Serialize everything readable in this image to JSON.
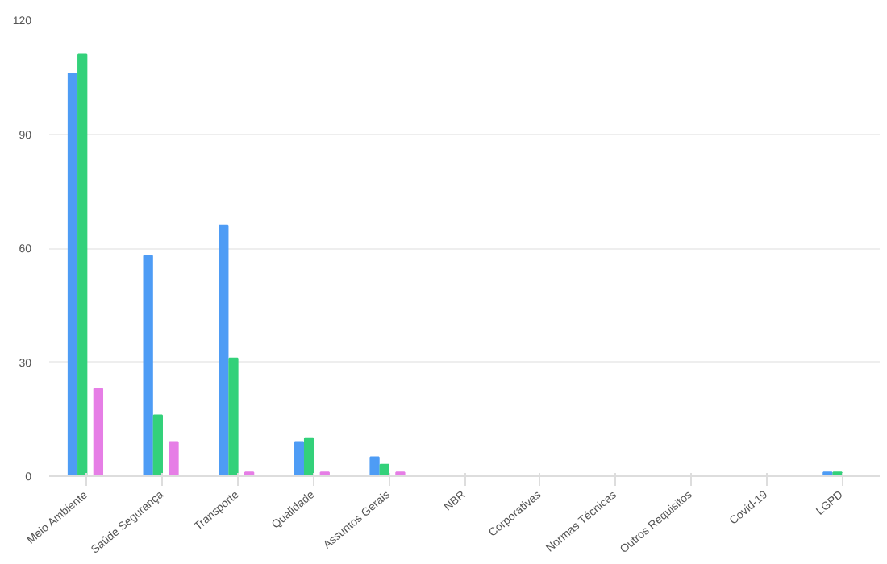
{
  "chart_data": {
    "type": "bar",
    "categories": [
      "Meio Ambiente",
      "Saúde Segurança",
      "Transporte",
      "Qualidade",
      "Assuntos Gerais",
      "NBR",
      "Corporativas",
      "Normas Técnicas",
      "Outros Requisitos",
      "Covid-19",
      "LGPD"
    ],
    "series": [
      {
        "color": "#4e9cf5",
        "values": [
          106,
          58,
          66,
          9,
          5,
          0,
          0,
          0,
          0,
          0,
          1
        ]
      },
      {
        "color": "#33d17a",
        "values": [
          111,
          16,
          31,
          10,
          3,
          0,
          0,
          0,
          0,
          0,
          1
        ]
      },
      {
        "color": "#e67ee6",
        "values": [
          23,
          9,
          1,
          1,
          1,
          0,
          0,
          0,
          0,
          0,
          0
        ]
      }
    ],
    "ylim": [
      0,
      120
    ],
    "yticks": [
      0,
      30,
      60,
      90,
      120
    ],
    "grid": "y"
  }
}
